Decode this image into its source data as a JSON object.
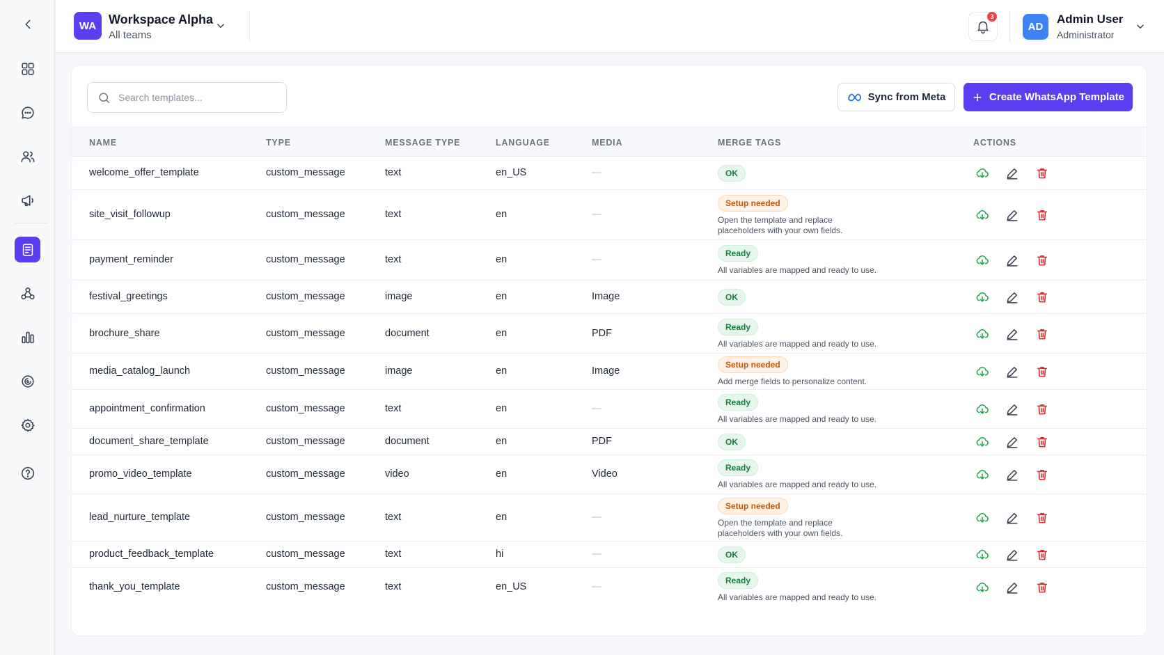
{
  "workspace": {
    "initials": "WA",
    "name": "Workspace Alpha",
    "subtitle": "All teams"
  },
  "notifications": {
    "count": "3"
  },
  "user": {
    "initials": "AD",
    "name": "Admin User",
    "role": "Administrator"
  },
  "search": {
    "placeholder": "Search templates..."
  },
  "buttons": {
    "sync": "Sync from Meta",
    "create": "Create WhatsApp Template"
  },
  "columns": [
    "NAME",
    "TYPE",
    "MESSAGE TYPE",
    "LANGUAGE",
    "MEDIA",
    "MERGE TAGS",
    "ACTIONS"
  ],
  "rows": [
    {
      "name": "welcome_offer_template",
      "type": "custom_message",
      "message_type": "text",
      "language": "en_US",
      "media": "—",
      "merge_status": "OK",
      "merge_kind": "ok",
      "merge_note": ""
    },
    {
      "name": "site_visit_followup",
      "type": "custom_message",
      "message_type": "text",
      "language": "en",
      "media": "—",
      "merge_status": "Setup needed",
      "merge_kind": "setup",
      "merge_note": "Open the template and replace placeholders with your own fields."
    },
    {
      "name": "payment_reminder",
      "type": "custom_message",
      "message_type": "text",
      "language": "en",
      "media": "—",
      "merge_status": "Ready",
      "merge_kind": "ok",
      "merge_note": "All variables are mapped and ready to use."
    },
    {
      "name": "festival_greetings",
      "type": "custom_message",
      "message_type": "image",
      "language": "en",
      "media": "Image",
      "merge_status": "OK",
      "merge_kind": "ok",
      "merge_note": ""
    },
    {
      "name": "brochure_share",
      "type": "custom_message",
      "message_type": "document",
      "language": "en",
      "media": "PDF",
      "merge_status": "Ready",
      "merge_kind": "ok",
      "merge_note": "All variables are mapped and ready to use."
    },
    {
      "name": "media_catalog_launch",
      "type": "custom_message",
      "message_type": "image",
      "language": "en",
      "media": "Image",
      "merge_status": "Setup needed",
      "merge_kind": "setup",
      "merge_note": "Add merge fields to personalize content."
    },
    {
      "name": "appointment_confirmation",
      "type": "custom_message",
      "message_type": "text",
      "language": "en",
      "media": "—",
      "merge_status": "Ready",
      "merge_kind": "ok",
      "merge_note": "All variables are mapped and ready to use."
    },
    {
      "name": "document_share_template",
      "type": "custom_message",
      "message_type": "document",
      "language": "en",
      "media": "PDF",
      "merge_status": "OK",
      "merge_kind": "ok",
      "merge_note": ""
    },
    {
      "name": "promo_video_template",
      "type": "custom_message",
      "message_type": "video",
      "language": "en",
      "media": "Video",
      "merge_status": "Ready",
      "merge_kind": "ok",
      "merge_note": "All variables are mapped and ready to use."
    },
    {
      "name": "lead_nurture_template",
      "type": "custom_message",
      "message_type": "text",
      "language": "en",
      "media": "—",
      "merge_status": "Setup needed",
      "merge_kind": "setup",
      "merge_note": "Open the template and replace placeholders with your own fields."
    },
    {
      "name": "product_feedback_template",
      "type": "custom_message",
      "message_type": "text",
      "language": "hi",
      "media": "—",
      "merge_status": "OK",
      "merge_kind": "ok",
      "merge_note": ""
    },
    {
      "name": "thank_you_template",
      "type": "custom_message",
      "message_type": "text",
      "language": "en_US",
      "media": "—",
      "merge_status": "Ready",
      "merge_kind": "ok",
      "merge_note": "All variables are mapped and ready to use."
    }
  ],
  "colors": {
    "accent": "#5b3ef0",
    "ok": "#15803d",
    "setup": "#c2590a",
    "delete": "#dc2626",
    "download": "#16a34a"
  },
  "icons": {
    "sidebar": [
      "chevron-left-icon",
      "dashboard-grid-icon",
      "chat-bubble-icon",
      "contacts-icon",
      "megaphone-icon",
      "templates-icon",
      "workflow-icon",
      "analytics-icon",
      "integrations-icon",
      "settings-icon",
      "help-icon"
    ],
    "actions": [
      "cloud-download-icon",
      "edit-pencil-icon",
      "trash-icon"
    ]
  }
}
